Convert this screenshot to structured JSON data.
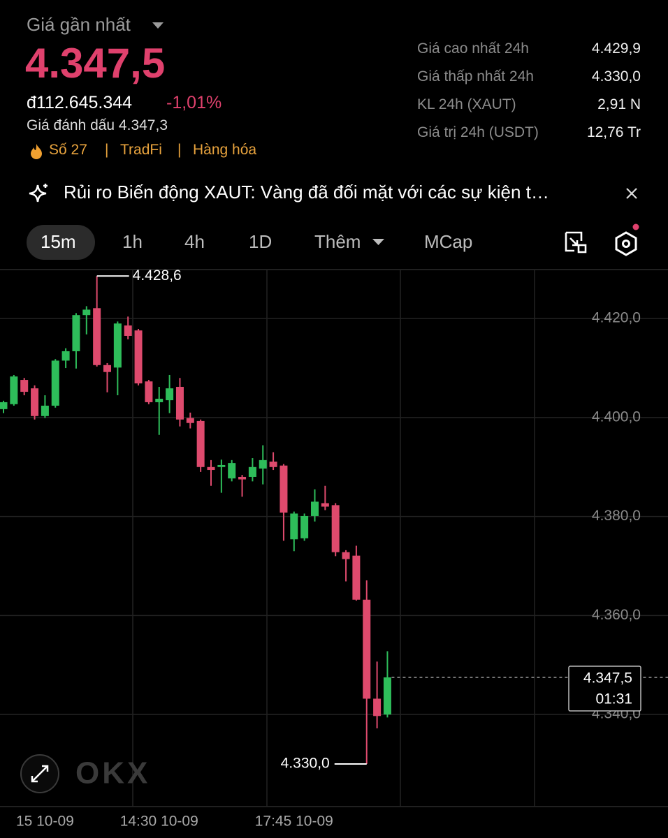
{
  "header": {
    "title": "Giá gần nhất",
    "price": "4.347,5",
    "fiat_price": "đ112.645.344",
    "change": "-1,01%",
    "mark_price": "Giá đánh dấu 4.347,3",
    "tags": [
      "Số 27",
      "TradFi",
      "Hàng hóa"
    ]
  },
  "stats": [
    {
      "label": "Giá cao nhất 24h",
      "value": "4.429,9"
    },
    {
      "label": "Giá thấp nhất 24h",
      "value": "4.330,0"
    },
    {
      "label": "KL 24h (XAUT)",
      "value": "2,91 N"
    },
    {
      "label": "Giá trị 24h (USDT)",
      "value": "12,76 Tr"
    }
  ],
  "banner": {
    "text": "Rủi ro Biến động XAUT: Vàng đã đối mặt với các sự kiện t…"
  },
  "tabs": [
    "15m",
    "1h",
    "4h",
    "1D",
    "Thêm",
    "MCap"
  ],
  "watermark": "OKX",
  "chart_data": {
    "type": "candlestick",
    "categories": [
      null,
      null,
      null,
      null,
      "15 10-09",
      null,
      null,
      null,
      null,
      null,
      null,
      null,
      null,
      null,
      null,
      "14:30 10-09",
      null,
      null,
      null,
      null,
      null,
      null,
      null,
      null,
      null,
      null,
      null,
      null,
      "17:45 10-09",
      null,
      null,
      null,
      null,
      null,
      null,
      null,
      null,
      null
    ],
    "open": [
      4401.7,
      4402.7,
      4407.6,
      4405.9,
      4400.3,
      4402.4,
      4411.5,
      4413.4,
      4420.7,
      4422.1,
      4410.6,
      4410.1,
      4418.6,
      4417.6,
      4407.3,
      4403.1,
      4403.5,
      4406.2,
      4399.9,
      4399.3,
      4390.0,
      4390.0,
      4387.7,
      4388.0,
      4388.0,
      4389.7,
      4391.1,
      4390.3,
      4375.4,
      4375.6,
      4380.1,
      4382.7,
      4382.3,
      4372.8,
      4372.1,
      4363.2,
      4343.2,
      4340.0
    ],
    "high": [
      4403.4,
      4408.6,
      4408.0,
      4406.5,
      4404.5,
      4411.8,
      4414.0,
      4421.1,
      4422.5,
      4428.6,
      4411.0,
      4419.4,
      4420.4,
      4417.9,
      4407.6,
      4406.2,
      4408.6,
      4408.0,
      4401.0,
      4399.6,
      4391.4,
      4391.5,
      4391.4,
      4388.4,
      4391.8,
      4394.4,
      4393.0,
      4390.6,
      4381.0,
      4380.6,
      4385.5,
      4386.2,
      4382.7,
      4373.2,
      4374.1,
      4367.1,
      4350.7,
      4352.8
    ],
    "low": [
      4400.9,
      4402.4,
      4404.5,
      4399.6,
      4399.9,
      4402.0,
      4410.0,
      4409.9,
      4416.8,
      4410.3,
      4405.1,
      4404.5,
      4415.8,
      4406.5,
      4402.7,
      4396.5,
      4400.9,
      4398.2,
      4397.8,
      4389.0,
      4386.2,
      4384.8,
      4387.1,
      4384.0,
      4387.1,
      4386.5,
      4389.4,
      4375.1,
      4373.0,
      4375.1,
      4379.0,
      4381.3,
      4372.0,
      4366.9,
      4363.0,
      4330.0,
      4337.2,
      4339.4
    ],
    "close": [
      4403.1,
      4408.3,
      4405.2,
      4400.3,
      4402.4,
      4411.5,
      4413.4,
      4420.7,
      4421.8,
      4410.6,
      4409.2,
      4419.0,
      4416.5,
      4406.9,
      4403.1,
      4403.8,
      4405.9,
      4399.6,
      4398.9,
      4390.0,
      4389.4,
      4390.4,
      4390.8,
      4387.5,
      4390.0,
      4391.4,
      4390.0,
      4380.8,
      4380.6,
      4380.1,
      4383.0,
      4382.0,
      4372.8,
      4371.4,
      4363.2,
      4343.2,
      4339.7,
      4347.5
    ],
    "up_color": "#2ebd5a",
    "down_color": "#de4a6d",
    "ylim": [
      4321.4,
      4429.9
    ],
    "yticks": [
      {
        "value": 4340,
        "label": "4.340,0"
      },
      {
        "value": 4360,
        "label": "4.360,0"
      },
      {
        "value": 4380,
        "label": "4.380,0"
      },
      {
        "value": 4400,
        "label": "4.400,0"
      },
      {
        "value": 4420,
        "label": "4.420,0"
      }
    ],
    "grid": true,
    "high_marker": {
      "value": 4428.6,
      "label": "4.428,6"
    },
    "low_marker": {
      "value": 4330.0,
      "label": "4.330,0"
    },
    "last_price": {
      "value": 4347.5,
      "label": "4.347,5"
    },
    "countdown": "01:31"
  }
}
